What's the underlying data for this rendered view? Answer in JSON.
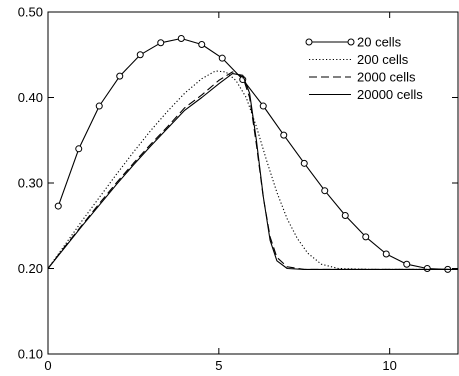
{
  "chart_data": {
    "type": "line",
    "title": "",
    "xlabel": "",
    "ylabel": "",
    "xlim": [
      0,
      12
    ],
    "ylim": [
      0.1,
      0.5
    ],
    "grid": false,
    "legend_position": "top-right",
    "x_ticks": [
      {
        "value": 0,
        "label": "0"
      },
      {
        "value": 5,
        "label": "5"
      },
      {
        "value": 10,
        "label": "10"
      }
    ],
    "y_ticks": [
      {
        "value": 0.1,
        "label": "0.10"
      },
      {
        "value": 0.2,
        "label": "0.20"
      },
      {
        "value": 0.3,
        "label": "0.30"
      },
      {
        "value": 0.4,
        "label": "0.40"
      },
      {
        "value": 0.5,
        "label": "0.50"
      }
    ],
    "series": [
      {
        "name": "20 cells",
        "style": "solid-circles",
        "color": "#000000",
        "points": [
          [
            0.3,
            0.273
          ],
          [
            0.9,
            0.34
          ],
          [
            1.5,
            0.39
          ],
          [
            2.1,
            0.425
          ],
          [
            2.7,
            0.45
          ],
          [
            3.3,
            0.464
          ],
          [
            3.9,
            0.469
          ],
          [
            4.5,
            0.462
          ],
          [
            5.1,
            0.446
          ],
          [
            5.7,
            0.421
          ],
          [
            6.3,
            0.39
          ],
          [
            6.9,
            0.356
          ],
          [
            7.5,
            0.323
          ],
          [
            8.1,
            0.291
          ],
          [
            8.7,
            0.262
          ],
          [
            9.3,
            0.237
          ],
          [
            9.9,
            0.217
          ],
          [
            10.5,
            0.205
          ],
          [
            11.1,
            0.2
          ],
          [
            11.7,
            0.199
          ]
        ]
      },
      {
        "name": "200 cells",
        "style": "dotted",
        "color": "#000000",
        "points": [
          [
            0,
            0.2
          ],
          [
            0.5,
            0.228
          ],
          [
            1.0,
            0.256
          ],
          [
            1.5,
            0.283
          ],
          [
            2.0,
            0.31
          ],
          [
            2.5,
            0.336
          ],
          [
            3.0,
            0.361
          ],
          [
            3.5,
            0.384
          ],
          [
            4.0,
            0.405
          ],
          [
            4.5,
            0.422
          ],
          [
            4.9,
            0.431
          ],
          [
            5.2,
            0.43
          ],
          [
            5.5,
            0.42
          ],
          [
            5.8,
            0.4
          ],
          [
            6.1,
            0.366
          ],
          [
            6.4,
            0.326
          ],
          [
            6.7,
            0.289
          ],
          [
            7.0,
            0.258
          ],
          [
            7.3,
            0.235
          ],
          [
            7.6,
            0.218
          ],
          [
            8.0,
            0.205
          ],
          [
            8.5,
            0.2
          ],
          [
            9.5,
            0.199
          ],
          [
            12.0,
            0.199
          ]
        ]
      },
      {
        "name": "2000 cells",
        "style": "dashed",
        "color": "#000000",
        "points": [
          [
            0,
            0.2
          ],
          [
            0.5,
            0.226
          ],
          [
            1.0,
            0.251
          ],
          [
            1.5,
            0.276
          ],
          [
            2.0,
            0.3
          ],
          [
            2.5,
            0.323
          ],
          [
            3.0,
            0.345
          ],
          [
            3.5,
            0.366
          ],
          [
            4.0,
            0.388
          ],
          [
            4.5,
            0.403
          ],
          [
            5.0,
            0.42
          ],
          [
            5.4,
            0.43
          ],
          [
            5.7,
            0.424
          ],
          [
            5.9,
            0.4
          ],
          [
            6.1,
            0.345
          ],
          [
            6.3,
            0.283
          ],
          [
            6.5,
            0.237
          ],
          [
            6.7,
            0.213
          ],
          [
            7.0,
            0.202
          ],
          [
            7.5,
            0.199
          ],
          [
            12.0,
            0.199
          ]
        ]
      },
      {
        "name": "20000 cells",
        "style": "solid",
        "color": "#000000",
        "points": [
          [
            0,
            0.2
          ],
          [
            0.5,
            0.225
          ],
          [
            1.0,
            0.25
          ],
          [
            1.5,
            0.274
          ],
          [
            2.0,
            0.298
          ],
          [
            2.5,
            0.321
          ],
          [
            3.0,
            0.343
          ],
          [
            3.5,
            0.364
          ],
          [
            4.0,
            0.385
          ],
          [
            4.5,
            0.4
          ],
          [
            5.0,
            0.416
          ],
          [
            5.4,
            0.428
          ],
          [
            5.7,
            0.426
          ],
          [
            5.9,
            0.405
          ],
          [
            6.1,
            0.35
          ],
          [
            6.3,
            0.284
          ],
          [
            6.5,
            0.233
          ],
          [
            6.7,
            0.209
          ],
          [
            7.0,
            0.2
          ],
          [
            7.5,
            0.199
          ],
          [
            12.0,
            0.199
          ]
        ]
      }
    ]
  }
}
